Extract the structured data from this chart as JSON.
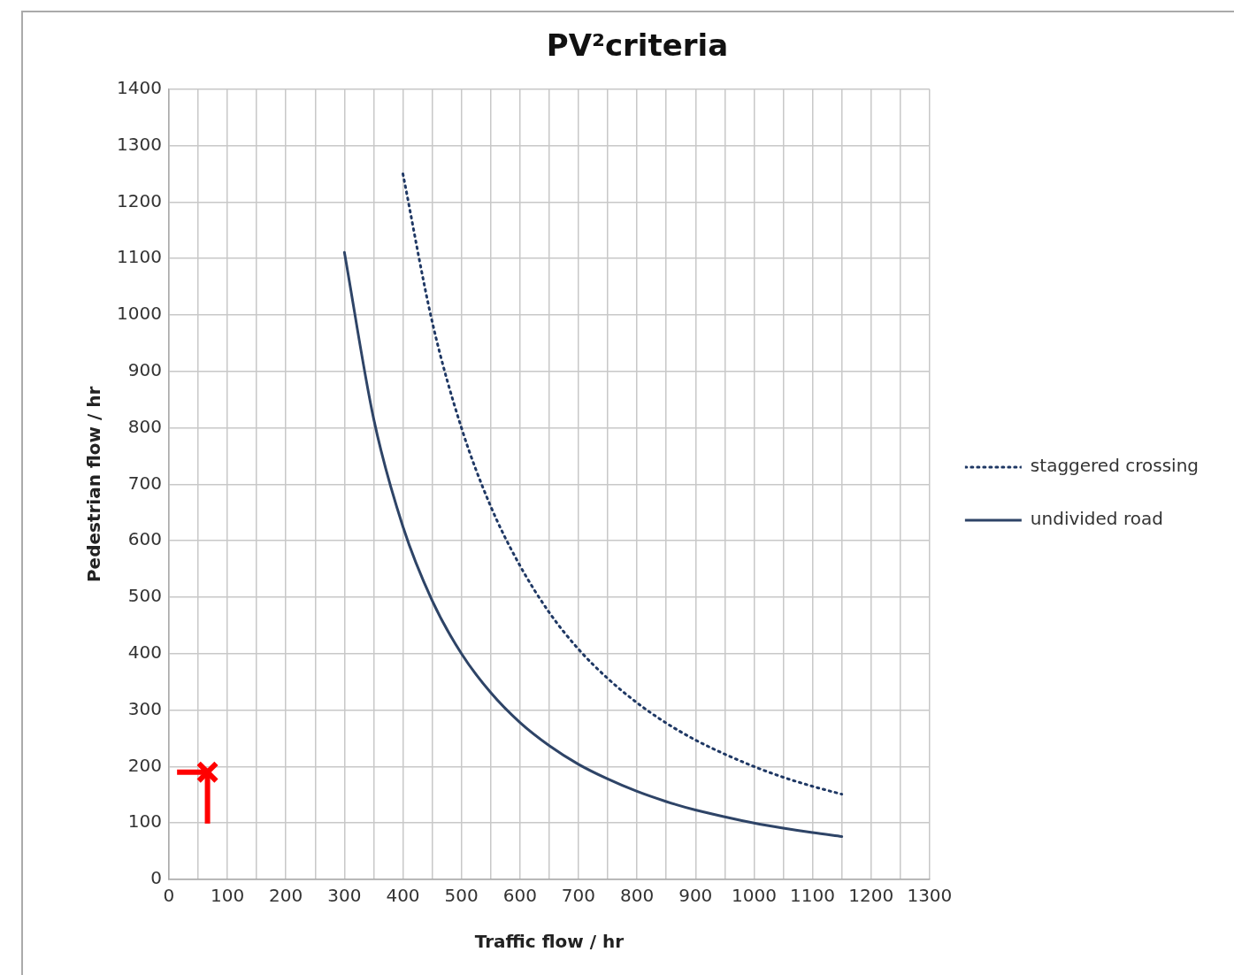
{
  "chart_data": {
    "type": "line",
    "title": "PV²criteria",
    "xlabel": "Traffic flow / hr",
    "ylabel": "Pedestrian flow / hr",
    "xlim": [
      0,
      1300
    ],
    "ylim": [
      0,
      1400
    ],
    "xticks": [
      0,
      {
        "value": 50,
        "label": null
      },
      100,
      {
        "value": 150,
        "label": null
      },
      200,
      {
        "value": 250,
        "label": null
      },
      300,
      {
        "value": 350,
        "label": null
      },
      400,
      {
        "value": 450,
        "label": null
      },
      500,
      {
        "value": 550,
        "label": null
      },
      600,
      {
        "value": 650,
        "label": null
      },
      700,
      {
        "value": 750,
        "label": null
      },
      800,
      {
        "value": 850,
        "label": null
      },
      900,
      {
        "value": 950,
        "label": null
      },
      1000,
      {
        "value": 1050,
        "label": null
      },
      1100,
      {
        "value": 1150,
        "label": null
      },
      1200,
      {
        "value": 1250,
        "label": null
      },
      1300
    ],
    "yticks": [
      0,
      100,
      200,
      300,
      400,
      500,
      600,
      700,
      800,
      900,
      1000,
      1100,
      1200,
      1300,
      1400
    ],
    "grid": true,
    "legend": "right",
    "series": [
      {
        "name": "staggered crossing",
        "line_style": "dotted",
        "marker": "none",
        "color": "#1f3864",
        "x": [
          400,
          450,
          500,
          550,
          600,
          650,
          700,
          750,
          800,
          850,
          900,
          950,
          1000,
          1050,
          1100,
          1150
        ],
        "values": [
          1250,
          988,
          800,
          661,
          556,
          473,
          408,
          356,
          313,
          277,
          247,
          222,
          200,
          181,
          165,
          151
        ]
      },
      {
        "name": "undivided road",
        "line_style": "solid",
        "marker": "none",
        "color": "#2e4467",
        "x": [
          300,
          350,
          400,
          450,
          500,
          550,
          600,
          650,
          700,
          750,
          800,
          850,
          900,
          950,
          1000,
          1050,
          1100,
          1150
        ],
        "values": [
          1111,
          816,
          625,
          494,
          400,
          331,
          278,
          237,
          204,
          178,
          156,
          138,
          123,
          111,
          100,
          91,
          83,
          76
        ]
      },
      {
        "type": "scatter",
        "marker": "cross",
        "color": "#ff0000",
        "x": [
          66
        ],
        "values": [
          190
        ],
        "errors": [
          [
            99,
            190
          ]
        ],
        "xerrors": [
          [
            14,
            66
          ]
        ]
      }
    ]
  }
}
